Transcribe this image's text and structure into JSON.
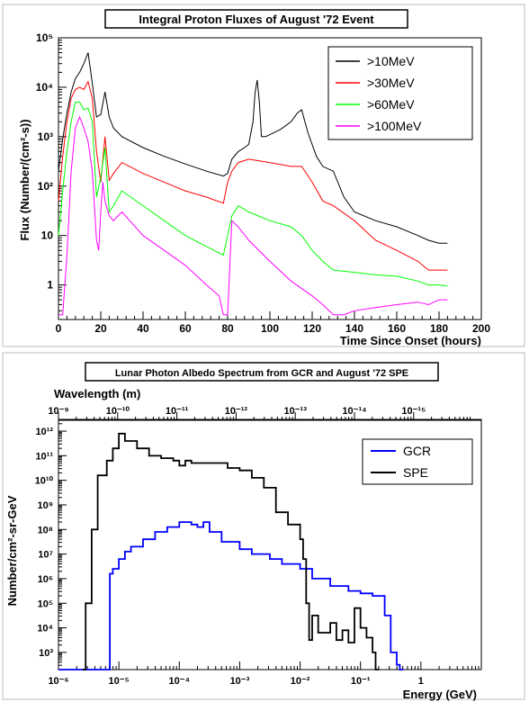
{
  "chart_data": [
    {
      "type": "line",
      "title": "Integral Proton Fluxes of August '72 Event",
      "xlabel": "Time Since Onset (hours)",
      "ylabel": "Flux (Number/(cm²-s))",
      "xlim": [
        0,
        200
      ],
      "ylim": [
        0.2,
        100000
      ],
      "yscale": "log",
      "grid": false,
      "legend_position": "top-right",
      "x_tick_labels": [
        "0",
        "20",
        "40",
        "60",
        "80",
        "100",
        "120",
        "140",
        "160",
        "180",
        "200"
      ],
      "y_tick_labels": [
        "1",
        "10",
        "10²",
        "10³",
        "10⁴",
        "10⁵"
      ],
      "series": [
        {
          "name": ">10MeV",
          "color": "#000000",
          "x": [
            0,
            2,
            4,
            6,
            8,
            10,
            12,
            14,
            16,
            18,
            20,
            22,
            24,
            26,
            30,
            40,
            50,
            60,
            70,
            78,
            80,
            82,
            85,
            88,
            90,
            92,
            93,
            94,
            95,
            96,
            98,
            100,
            105,
            110,
            113,
            115,
            118,
            122,
            125,
            130,
            135,
            140,
            150,
            160,
            170,
            175,
            180,
            184
          ],
          "y": [
            200,
            900,
            3000,
            8000,
            15000,
            20000,
            30000,
            50000,
            12000,
            2500,
            2800,
            8000,
            2500,
            1500,
            1000,
            600,
            400,
            280,
            200,
            160,
            180,
            350,
            500,
            600,
            700,
            2000,
            8000,
            14000,
            5000,
            1000,
            1000,
            1100,
            1400,
            2000,
            3000,
            3500,
            1200,
            400,
            250,
            200,
            60,
            30,
            20,
            15,
            10,
            8,
            7,
            7
          ]
        },
        {
          "name": ">30MeV",
          "color": "#ff0000",
          "x": [
            0,
            2,
            4,
            6,
            8,
            10,
            12,
            14,
            16,
            18,
            20,
            22,
            24,
            26,
            30,
            40,
            50,
            60,
            70,
            78,
            80,
            82,
            85,
            90,
            100,
            110,
            115,
            120,
            125,
            130,
            140,
            150,
            160,
            170,
            175,
            180,
            184
          ],
          "y": [
            50,
            400,
            2000,
            6000,
            9000,
            10000,
            9000,
            13000,
            6000,
            500,
            120,
            1000,
            130,
            180,
            300,
            180,
            120,
            80,
            60,
            45,
            120,
            200,
            300,
            350,
            300,
            250,
            250,
            120,
            50,
            40,
            20,
            8,
            5,
            3,
            2,
            2,
            2
          ]
        },
        {
          "name": ">60MeV",
          "color": "#00ff00",
          "x": [
            0,
            2,
            4,
            6,
            8,
            10,
            12,
            14,
            16,
            18,
            20,
            22,
            24,
            26,
            30,
            40,
            50,
            60,
            70,
            78,
            80,
            82,
            85,
            90,
            100,
            110,
            115,
            120,
            125,
            130,
            140,
            150,
            160,
            170,
            175,
            180,
            184
          ],
          "y": [
            10,
            80,
            500,
            2000,
            5000,
            5000,
            3500,
            3800,
            2000,
            60,
            150,
            600,
            30,
            40,
            80,
            40,
            20,
            10,
            6,
            4,
            10,
            25,
            40,
            30,
            20,
            15,
            10,
            5,
            3,
            2,
            1.8,
            1.6,
            1.5,
            1.2,
            1,
            1,
            0.95
          ]
        },
        {
          "name": ">100MeV",
          "color": "#ff00ff",
          "x": [
            0,
            2,
            4,
            6,
            8,
            10,
            12,
            14,
            16,
            18,
            19,
            20,
            21,
            22,
            24,
            26,
            30,
            40,
            50,
            60,
            70,
            76,
            78,
            79,
            80,
            82,
            85,
            90,
            100,
            110,
            120,
            125,
            130,
            135,
            140,
            150,
            160,
            170,
            175,
            180,
            184
          ],
          "y": [
            0.25,
            0.25,
            4,
            200,
            1500,
            2500,
            1500,
            800,
            200,
            8,
            5,
            30,
            120,
            50,
            25,
            20,
            30,
            10,
            5,
            2.5,
            1,
            0.6,
            0.25,
            0.25,
            0.25,
            20,
            15,
            8,
            3,
            1.2,
            0.6,
            0.4,
            0.25,
            0.25,
            0.3,
            0.35,
            0.4,
            0.45,
            0.4,
            0.5,
            0.5
          ]
        }
      ]
    },
    {
      "type": "line",
      "step": true,
      "title": "Lunar Photon Albedo Spectrum from GCR and August '72 SPE",
      "xlabel": "Energy (GeV)",
      "ylabel": "Number/cm²-sr-GeV",
      "top_axis_label": "Wavelength (m)",
      "xscale": "log",
      "yscale": "log",
      "xlim": [
        1e-06,
        10
      ],
      "ylim": [
        200,
        3000000000000
      ],
      "grid": false,
      "legend_position": "top-right",
      "x_tick_labels": [
        "10⁻⁶",
        "10⁻⁵",
        "10⁻⁴",
        "10⁻³",
        "10⁻²",
        "10⁻¹",
        "1"
      ],
      "top_tick_labels": [
        "10⁻⁹",
        "10⁻¹⁰",
        "10⁻¹¹",
        "10⁻¹²",
        "10⁻¹³",
        "10⁻¹⁴",
        "10⁻¹⁵"
      ],
      "y_tick_labels": [
        "10³",
        "10⁴",
        "10⁵",
        "10⁶",
        "10⁷",
        "10⁸",
        "10⁹",
        "10¹⁰",
        "10¹¹",
        "10¹²"
      ],
      "series": [
        {
          "name": "GCR",
          "color": "#0000ff",
          "log10_x": [
            -6,
            -5.15,
            -5.1,
            -5.0,
            -4.9,
            -4.8,
            -4.6,
            -4.4,
            -4.2,
            -4.0,
            -3.8,
            -3.7,
            -3.6,
            -3.5,
            -3.3,
            -3.0,
            -2.8,
            -2.5,
            -2.3,
            -2.0,
            -1.8,
            -1.5,
            -1.2,
            -1.0,
            -0.8,
            -0.6,
            -0.5,
            -0.4,
            -0.35
          ],
          "log10_y": [
            2.3,
            6.2,
            6.4,
            6.8,
            7.1,
            7.3,
            7.6,
            7.9,
            8.1,
            8.3,
            8.2,
            8.1,
            8.3,
            7.9,
            7.5,
            7.2,
            7.0,
            6.8,
            6.6,
            6.4,
            6.0,
            5.7,
            5.5,
            5.4,
            5.3,
            4.5,
            3.0,
            2.5,
            2.3
          ]
        },
        {
          "name": "SPE",
          "color": "#000000",
          "log10_x": [
            -5.6,
            -5.55,
            -5.45,
            -5.35,
            -5.2,
            -5.1,
            -5.0,
            -4.9,
            -4.7,
            -4.5,
            -4.3,
            -4.1,
            -4.0,
            -3.9,
            -3.8,
            -3.6,
            -3.4,
            -3.2,
            -3.0,
            -2.8,
            -2.6,
            -2.4,
            -2.2,
            -2.0,
            -1.95,
            -1.9,
            -1.85,
            -1.8,
            -1.7,
            -1.5,
            -1.4,
            -1.3,
            -1.2,
            -1.1,
            -1.0,
            -0.9,
            -0.8,
            -0.75
          ],
          "log10_y": [
            2.3,
            5.0,
            8.0,
            10.2,
            10.8,
            11.3,
            11.9,
            11.6,
            11.3,
            11.0,
            10.9,
            10.8,
            10.6,
            10.8,
            10.7,
            10.7,
            10.7,
            10.5,
            10.4,
            10.1,
            9.7,
            8.7,
            8.2,
            7.6,
            6.8,
            5.0,
            3.5,
            4.5,
            3.8,
            4.2,
            3.5,
            3.9,
            3.4,
            4.8,
            4.0,
            3.6,
            3.0,
            2.3
          ]
        }
      ]
    }
  ]
}
